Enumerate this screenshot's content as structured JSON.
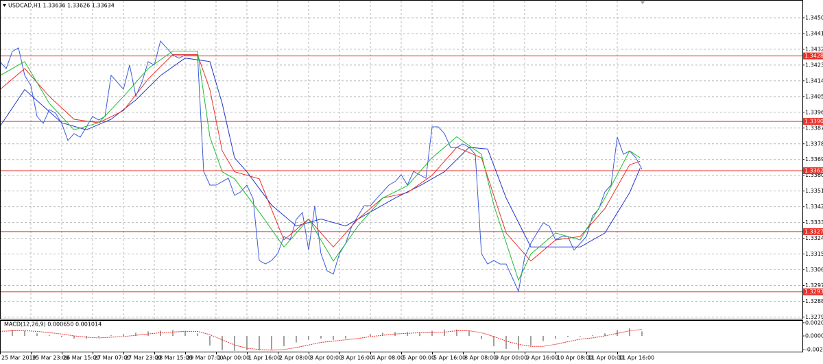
{
  "chart_data": [
    {
      "type": "line",
      "title": "USDCAD,H1 1.33636 1.33626 1.33634",
      "xlim": [
        0,
        130
      ],
      "ylim": [
        1.3278,
        1.3459
      ],
      "grid": true,
      "xticks": [
        {
          "value": 0,
          "label": "25 Mar 2019"
        },
        {
          "value": 5,
          "label": "25 Mar 23:00"
        },
        {
          "value": 10,
          "label": "26 Mar 15:00"
        },
        {
          "value": 15,
          "label": "27 Mar 07:00"
        },
        {
          "value": 20,
          "label": "27 Mar 23:00"
        },
        {
          "value": 25,
          "label": "28 Mar 15:00"
        },
        {
          "value": 30,
          "label": "29 Mar 07:00"
        },
        {
          "value": 35,
          "label": "1 Apr 00:00"
        },
        {
          "value": 40,
          "label": "1 Apr 16:00"
        },
        {
          "value": 45,
          "label": "2 Apr 08:00"
        },
        {
          "value": 50,
          "label": "3 Apr 00:00"
        },
        {
          "value": 55,
          "label": "3 Apr 16:00"
        },
        {
          "value": 60,
          "label": "4 Apr 08:00"
        },
        {
          "value": 65,
          "label": "5 Apr 00:00"
        },
        {
          "value": 70,
          "label": "5 Apr 16:00"
        },
        {
          "value": 75,
          "label": "8 Apr 08:00"
        },
        {
          "value": 80,
          "label": "9 Apr 00:00"
        },
        {
          "value": 85,
          "label": "9 Apr 16:00"
        },
        {
          "value": 90,
          "label": "10 Apr 08:00"
        },
        {
          "value": 95,
          "label": "11 Apr 00:00"
        },
        {
          "value": 100,
          "label": "11 Apr 16:00"
        }
      ],
      "yticks": [
        {
          "value": 1.345,
          "label": "1.34500"
        },
        {
          "value": 1.3441,
          "label": "1.34410"
        },
        {
          "value": 1.3432,
          "label": "1.34320"
        },
        {
          "value": 1.3423,
          "label": "1.34230"
        },
        {
          "value": 1.3414,
          "label": "1.34140"
        },
        {
          "value": 1.3405,
          "label": "1.34050"
        },
        {
          "value": 1.3396,
          "label": "1.33960"
        },
        {
          "value": 1.3387,
          "label": "1.33870"
        },
        {
          "value": 1.3378,
          "label": "1.33780"
        },
        {
          "value": 1.3369,
          "label": "1.33690"
        },
        {
          "value": 1.336,
          "label": "1.33600"
        },
        {
          "value": 1.3351,
          "label": "1.33510"
        },
        {
          "value": 1.3342,
          "label": "1.33420"
        },
        {
          "value": 1.3333,
          "label": "1.33330"
        },
        {
          "value": 1.3324,
          "label": "1.33240"
        },
        {
          "value": 1.3315,
          "label": "1.33150"
        },
        {
          "value": 1.3306,
          "label": "1.33060"
        },
        {
          "value": 1.3297,
          "label": "1.32970"
        },
        {
          "value": 1.3288,
          "label": "1.32880"
        },
        {
          "value": 1.3279,
          "label": "1.32790"
        }
      ],
      "levels": [
        {
          "value": 1.34282,
          "color": "#e8312a"
        },
        {
          "value": 1.33908,
          "color": "#e8312a"
        },
        {
          "value": 1.33626,
          "color": "#e8312a"
        },
        {
          "value": 1.33278,
          "color": "#e8312a"
        },
        {
          "value": 1.32934,
          "color": "#e8312a"
        }
      ],
      "series": [
        {
          "color": "#3b5bdb",
          "values": [
            1.34249,
            1.3421,
            1.34308,
            1.34328,
            1.34171,
            1.34112,
            1.33936,
            1.33897,
            1.33975,
            1.33955,
            1.33897,
            1.33799,
            1.33838,
            1.33818,
            1.33877,
            1.33936,
            1.33916,
            1.33936,
            1.34171,
            1.34132,
            1.34092,
            1.3423,
            1.34053,
            1.34132,
            1.34249,
            1.3423,
            1.34367,
            1.34328,
            1.34288,
            1.34269,
            1.34288,
            1.34288,
            1.34288,
            1.33622,
            1.33544,
            1.33544,
            1.33564,
            1.33583,
            1.33485,
            1.33505,
            1.33544,
            1.33466,
            1.33113,
            1.33093,
            1.33113,
            1.33152,
            1.3325,
            1.33231,
            1.33348,
            1.33387,
            1.33172,
            1.33426,
            1.33152,
            1.33054,
            1.33035,
            1.33152,
            1.33211,
            1.33309,
            1.33368,
            1.33426,
            1.33426,
            1.33466,
            1.33505,
            1.33544,
            1.33564,
            1.33603,
            1.33544,
            1.33622,
            1.33603,
            1.33583,
            1.33877,
            1.33877,
            1.33838,
            1.33759,
            1.33759,
            1.33779,
            1.33759,
            1.3372,
            1.33152,
            1.33093,
            1.33113,
            1.33093,
            1.33093,
            1.33015,
            1.32937,
            1.33133,
            1.33211,
            1.3327,
            1.33328,
            1.33309,
            1.33231,
            1.3325,
            1.3325,
            1.33172,
            1.33211,
            1.3325,
            1.33368,
            1.33407,
            1.33505,
            1.33544,
            1.33818,
            1.3372,
            1.33739,
            1.33701,
            1.33634
          ]
        },
        {
          "color": "#2233cc",
          "x": [
            0,
            4,
            10,
            14,
            18,
            22,
            26,
            30,
            34,
            36,
            38,
            40,
            44,
            48,
            52,
            56,
            60,
            64,
            68,
            72,
            76,
            79,
            82,
            86,
            90,
            94,
            98,
            102,
            103.7
          ],
          "values": [
            1.3388,
            1.3409,
            1.339,
            1.3386,
            1.3392,
            1.3403,
            1.3417,
            1.3427,
            1.3425,
            1.3401,
            1.337,
            1.3362,
            1.3343,
            1.3331,
            1.3335,
            1.3331,
            1.3339,
            1.3347,
            1.3354,
            1.3362,
            1.3376,
            1.3375,
            1.3347,
            1.3319,
            1.3319,
            1.3319,
            1.3327,
            1.335,
            1.3364
          ]
        },
        {
          "color": "#e8312a",
          "x": [
            0,
            4,
            8,
            12,
            16,
            20,
            24,
            28,
            32,
            34,
            36,
            38,
            42,
            46,
            50,
            54,
            58,
            62,
            66,
            70,
            74,
            78,
            82,
            86,
            90,
            94,
            98,
            102,
            103.7
          ],
          "values": [
            1.3409,
            1.3421,
            1.3405,
            1.3392,
            1.339,
            1.3397,
            1.3415,
            1.3429,
            1.3429,
            1.3409,
            1.3374,
            1.3362,
            1.3358,
            1.3323,
            1.3335,
            1.3319,
            1.3335,
            1.3347,
            1.335,
            1.336,
            1.3376,
            1.337,
            1.3327,
            1.3311,
            1.3323,
            1.3325,
            1.3341,
            1.3366,
            1.3368
          ]
        },
        {
          "color": "#22bb33",
          "x": [
            0,
            4,
            8,
            12,
            16,
            20,
            24,
            28,
            32,
            34,
            36,
            38,
            42,
            46,
            50,
            54,
            58,
            62,
            66,
            70,
            74,
            78,
            80,
            84,
            86,
            90,
            94,
            98,
            102,
            103.7
          ],
          "values": [
            1.3417,
            1.3425,
            1.3401,
            1.3386,
            1.339,
            1.3405,
            1.3421,
            1.3431,
            1.3431,
            1.3382,
            1.3362,
            1.3358,
            1.3339,
            1.3319,
            1.3335,
            1.3311,
            1.3331,
            1.3347,
            1.3354,
            1.337,
            1.3382,
            1.3372,
            1.3343,
            1.33,
            1.3315,
            1.3327,
            1.3323,
            1.3347,
            1.3374,
            1.337
          ]
        }
      ]
    },
    {
      "type": "macd",
      "title": "MACD(12,26,9) 0.000650 0.001014",
      "xlim": [
        0,
        65
      ],
      "ylim": [
        -0.00243,
        0.00244
      ],
      "yticks": [
        0.002032,
        {
          "value": 0,
          "label": "0.000000"
        },
        -0.00212
      ],
      "series": [
        {
          "type": "bar",
          "color": "#a0a0a0",
          "values": [
            0.0008,
            0.0009,
            0.0008,
            0.0004,
            0.0001,
            -0.0002,
            -0.0004,
            -0.0004,
            -0.0002,
            0.0001,
            0.0003,
            0.0005,
            0.0007,
            0.0008,
            0.0009,
            0.0008,
            0.0004,
            -0.0015,
            -0.0022,
            -0.0023,
            -0.0022,
            -0.0022,
            -0.0021,
            -0.0016,
            -0.001,
            -0.0006,
            -0.0004,
            -0.0006,
            -0.0004,
            0.0,
            0.0003,
            0.0005,
            0.0006,
            0.0006,
            0.0005,
            0.0008,
            0.001,
            0.001,
            0.0008,
            -0.0005,
            -0.0016,
            -0.002,
            -0.0021,
            -0.0015,
            -0.0008,
            -0.0004,
            -0.0002,
            -0.0001,
            0.0001,
            0.0004,
            0.0009,
            0.0012,
            0.0007
          ]
        },
        {
          "type": "line",
          "color": "#e8312a",
          "values": [
            0.0007,
            0.0008,
            0.0008,
            0.0007,
            0.0005,
            0.0003,
            0.0,
            -0.0002,
            -0.0003,
            -0.0002,
            -0.0001,
            0.0001,
            0.0003,
            0.0005,
            0.0006,
            0.0007,
            0.0007,
            0.0002,
            -0.0006,
            -0.0014,
            -0.0019,
            -0.0021,
            -0.0022,
            -0.0021,
            -0.0018,
            -0.0014,
            -0.001,
            -0.0008,
            -0.0006,
            -0.0004,
            -0.0001,
            0.0001,
            0.0003,
            0.0004,
            0.0005,
            0.0005,
            0.0006,
            0.0008,
            0.0008,
            0.0005,
            -0.0001,
            -0.0008,
            -0.0013,
            -0.0016,
            -0.0016,
            -0.0013,
            -0.0009,
            -0.0005,
            -0.0003,
            0.0,
            0.0004,
            0.0008,
            0.001
          ]
        }
      ]
    }
  ]
}
